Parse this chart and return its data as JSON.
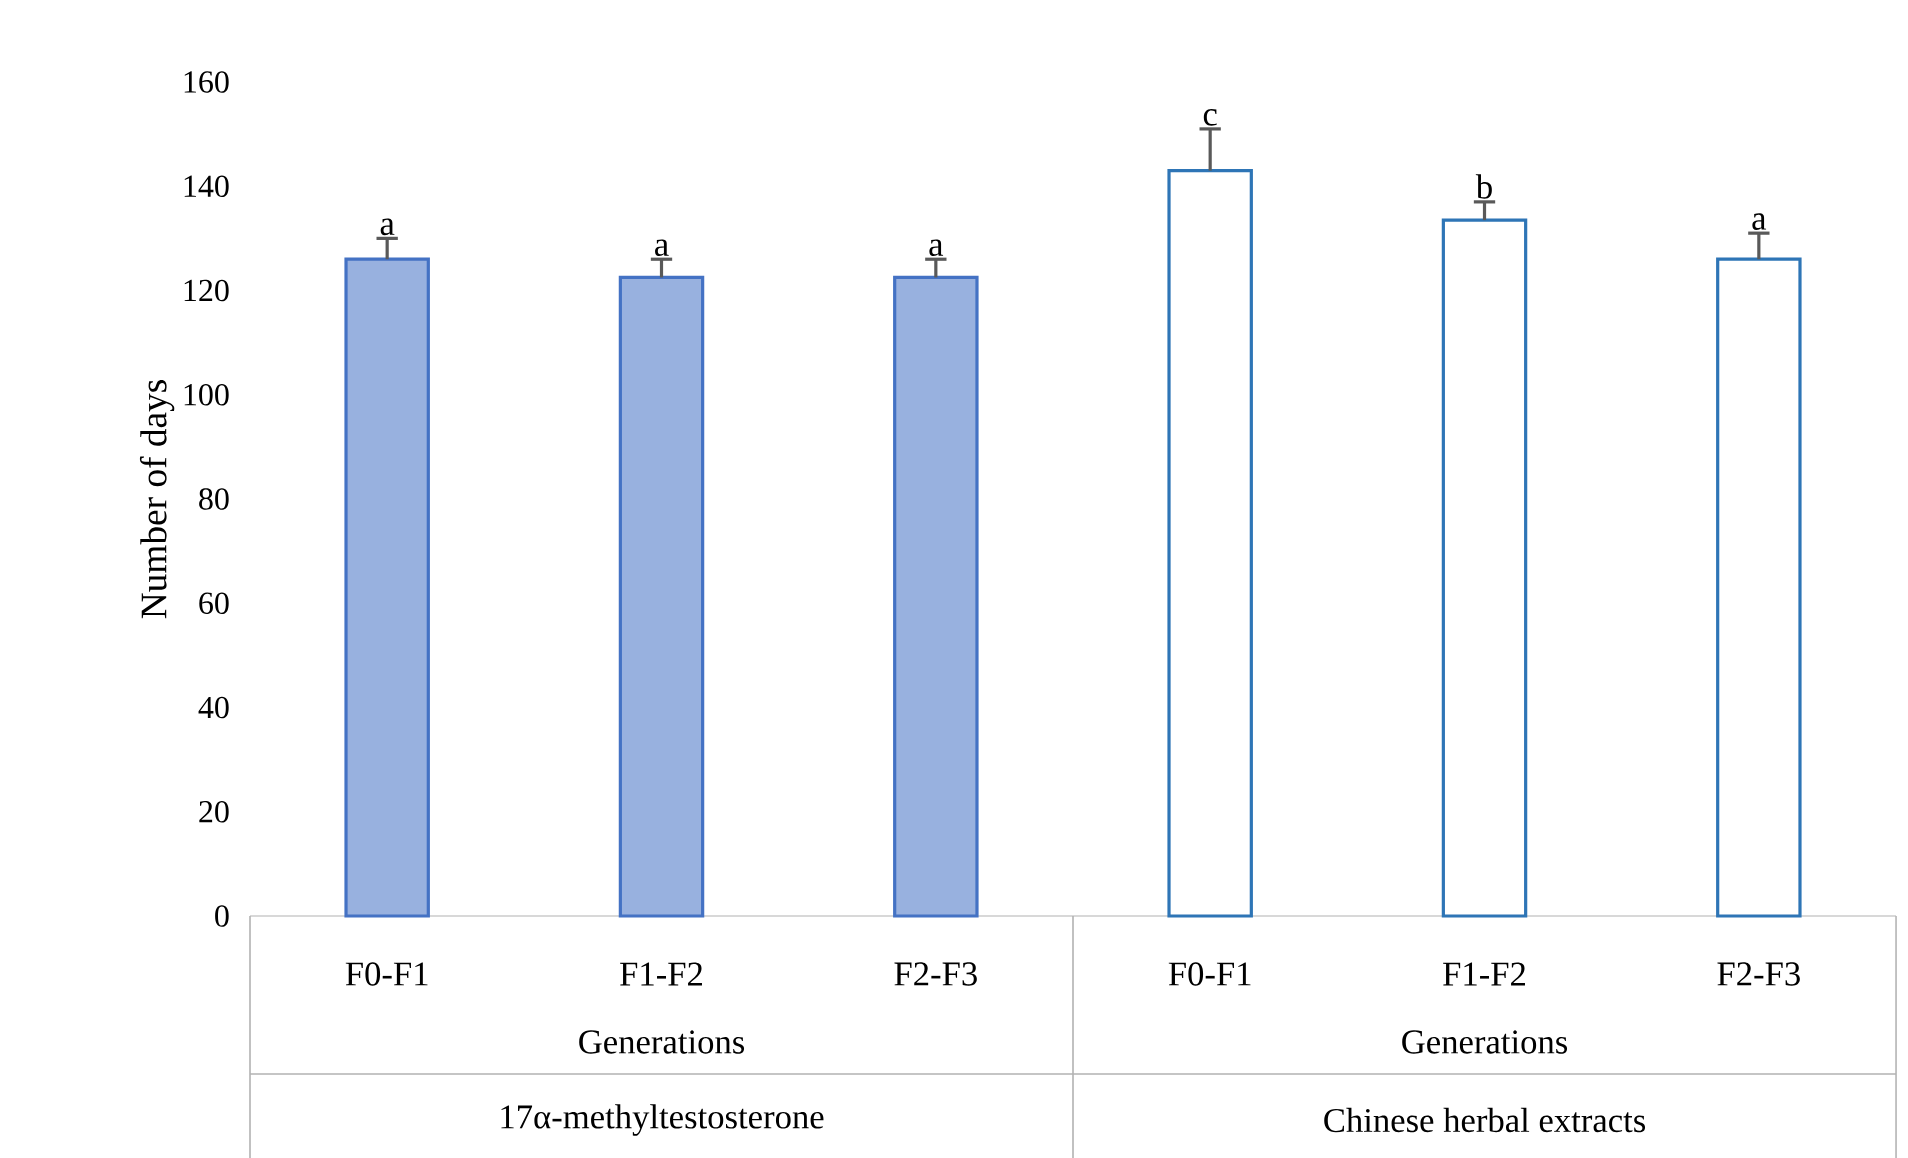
{
  "chart_data": {
    "type": "bar",
    "ylabel": "Number of days",
    "categories": [
      "F0-F1",
      "F1-F2",
      "F2-F3",
      "F0-F1",
      "F1-F2",
      "F2-F3"
    ],
    "series": [
      {
        "color": "#4472c4",
        "values": [
          126,
          122.5,
          122.5,
          null,
          null,
          null
        ],
        "errors": [
          [
            126,
            130
          ],
          [
            122.5,
            126
          ],
          [
            122.5,
            126
          ],
          null,
          null,
          null
        ],
        "value_labels": [
          "a",
          "a",
          "a",
          null,
          null,
          null
        ]
      },
      {
        "color": "#2e75b6",
        "values": [
          null,
          null,
          null,
          143,
          133.5,
          126
        ],
        "errors": [
          null,
          null,
          null,
          [
            143,
            151
          ],
          [
            133.5,
            137
          ],
          [
            126,
            131
          ]
        ],
        "value_labels": [
          null,
          null,
          null,
          "c",
          "b",
          "a"
        ]
      }
    ],
    "ylim": [
      0,
      160
    ],
    "yticks": [
      0,
      20,
      40,
      60,
      80,
      100,
      120,
      140,
      160
    ],
    "annotations": [
      "Generations",
      "Generations",
      "17α-methyltestosterone",
      "Chinese herbal extracts"
    ]
  }
}
